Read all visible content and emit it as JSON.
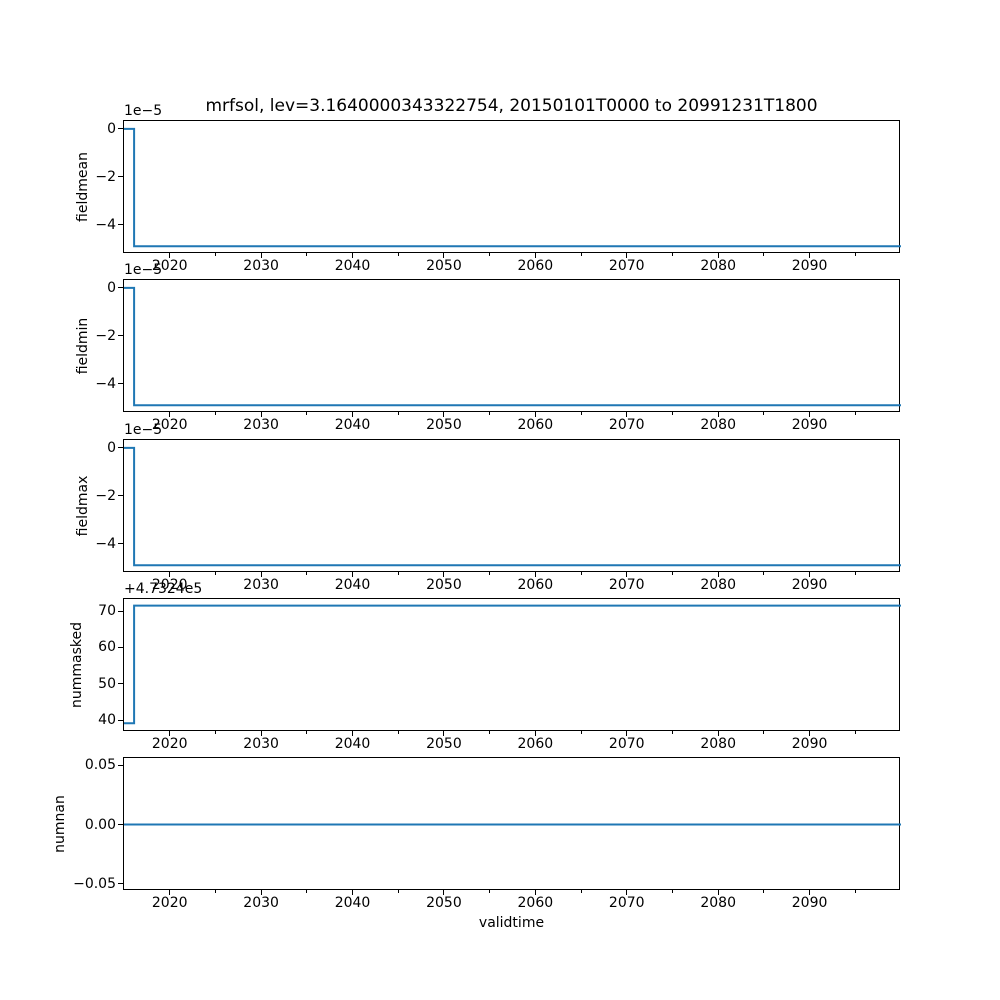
{
  "figure": {
    "title": "mrfsol, lev=3.1640000343322754, 20150101T0000 to 20991231T1800",
    "xlabel": "validtime"
  },
  "chart_data": {
    "type": "line",
    "title": "mrfsol, lev=3.1640000343322754, 20150101T0000 to 20991231T1800",
    "xlabel": "validtime",
    "ylabel": "",
    "grid": false,
    "legend": null,
    "line_color": "#1f77b4",
    "background_color": "#ffffff",
    "xlim": [
      2015,
      2100
    ],
    "xticks": [
      2020,
      2030,
      2040,
      2050,
      2060,
      2070,
      2080,
      2090
    ],
    "xtick_labels": [
      "2020",
      "2030",
      "2040",
      "2050",
      "2060",
      "2070",
      "2080",
      "2090"
    ],
    "xticks_minor": [
      2025,
      2035,
      2045,
      2055,
      2065,
      2075,
      2085,
      2095
    ],
    "subplots": [
      {
        "ylabel": "fieldmean",
        "offset_text": "1e−5",
        "y_unit_scale": "values shown in units of 1e-5",
        "ylim": [
          -5.22,
          0.33
        ],
        "yticks": [
          0,
          -2,
          -4
        ],
        "ytick_labels": [
          "0",
          "−2",
          "−4"
        ],
        "series": {
          "x": [
            2015,
            2016.1,
            2016.1,
            2100
          ],
          "y": [
            0,
            0,
            -4.9,
            -4.9
          ]
        }
      },
      {
        "ylabel": "fieldmin",
        "offset_text": "1e−5",
        "y_unit_scale": "values shown in units of 1e-5",
        "ylim": [
          -5.22,
          0.33
        ],
        "yticks": [
          0,
          -2,
          -4
        ],
        "ytick_labels": [
          "0",
          "−2",
          "−4"
        ],
        "series": {
          "x": [
            2015,
            2016.1,
            2016.1,
            2100
          ],
          "y": [
            0,
            0,
            -4.9,
            -4.9
          ]
        }
      },
      {
        "ylabel": "fieldmax",
        "offset_text": "1e−5",
        "y_unit_scale": "values shown in units of 1e-5",
        "ylim": [
          -5.22,
          0.33
        ],
        "yticks": [
          0,
          -2,
          -4
        ],
        "ytick_labels": [
          "0",
          "−2",
          "−4"
        ],
        "series": {
          "x": [
            2015,
            2016.1,
            2016.1,
            2100
          ],
          "y": [
            0,
            0,
            -4.9,
            -4.9
          ]
        }
      },
      {
        "ylabel": "nummasked",
        "offset_text": "+4.7324e5",
        "y_unit_scale": "values shown relative to offset +4.7324e5",
        "ylim": [
          36.8,
          73.3
        ],
        "yticks": [
          40,
          50,
          60,
          70
        ],
        "ytick_labels": [
          "40",
          "50",
          "60",
          "70"
        ],
        "series": {
          "x": [
            2015,
            2016.1,
            2016.1,
            2100
          ],
          "y": [
            39.2,
            39.2,
            71.5,
            71.5
          ]
        }
      },
      {
        "ylabel": "numnan",
        "offset_text": "",
        "y_unit_scale": "",
        "ylim": [
          -0.056,
          0.056
        ],
        "yticks": [
          0.05,
          0,
          -0.05
        ],
        "ytick_labels": [
          "0.05",
          "0.00",
          "−0.05"
        ],
        "series": {
          "x": [
            2015,
            2100
          ],
          "y": [
            0,
            0
          ]
        }
      }
    ]
  }
}
